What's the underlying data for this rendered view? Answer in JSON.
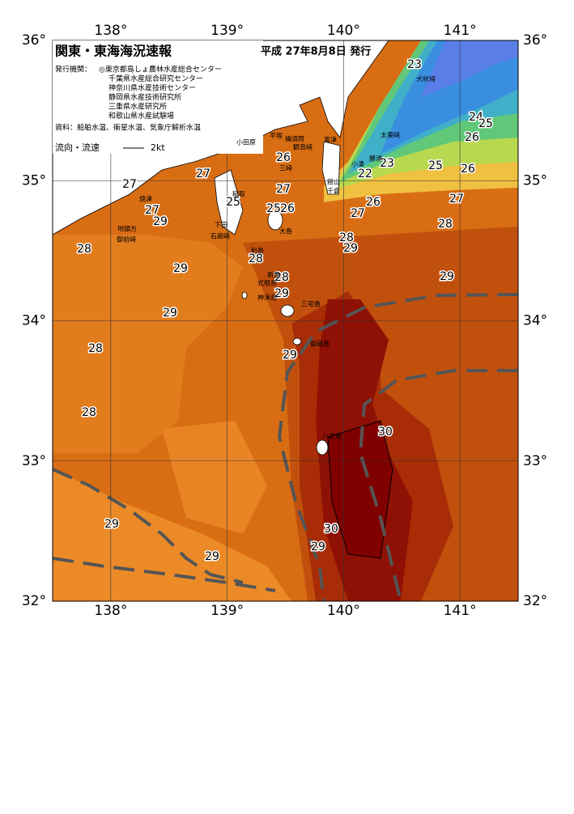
{
  "header": {
    "title": "関東・東海海況速報",
    "date": "平成 27年8月8日 発行"
  },
  "info": {
    "publisher_label": "発行機関：",
    "publishers": [
      "◎東京都島しょ農林水産総合センター",
      "千葉県水産総合研究センター",
      "神奈川県水産技術センター",
      "静岡県水産技術研究所",
      "三重県水産研究所",
      "和歌山県水産試験場"
    ],
    "source": "資料：船舶水温、衛星水温、気象庁解析水温",
    "current_label": "流向・流速",
    "current_scale": "2kt"
  },
  "map": {
    "lon_ticks": [
      {
        "value": 138,
        "label": "138°"
      },
      {
        "value": 139,
        "label": "139°"
      },
      {
        "value": 140,
        "label": "140°"
      },
      {
        "value": 141,
        "label": "141°"
      }
    ],
    "lat_ticks": [
      {
        "value": 36,
        "label": "36°"
      },
      {
        "value": 35,
        "label": "35°"
      },
      {
        "value": 34,
        "label": "34°"
      },
      {
        "value": 33,
        "label": "33°"
      },
      {
        "value": 32,
        "label": "32°"
      }
    ],
    "lonlim": [
      137.5,
      141.5
    ],
    "latlim": [
      32,
      36
    ],
    "isotherm_labels": [
      23,
      24,
      25,
      26,
      23,
      22,
      25,
      26,
      27,
      26,
      27,
      28,
      28,
      29,
      29,
      27,
      27,
      27,
      26,
      25,
      25,
      26,
      28,
      29,
      27,
      29,
      29,
      28,
      28,
      28,
      29,
      29,
      28,
      30,
      30,
      29,
      29,
      29
    ],
    "places": [
      "小田原",
      "平塚",
      "横須賀",
      "観音崎",
      "富津",
      "三崎",
      "館山",
      "千倉",
      "小湊",
      "勝浦",
      "太東崎",
      "犬吠埼",
      "焼津",
      "御前崎",
      "地頭方",
      "石廊崎",
      "下田",
      "稲取",
      "大島",
      "利島",
      "新島",
      "式根島",
      "神津島",
      "三宅島",
      "御蔵島",
      "八丈島"
    ]
  }
}
